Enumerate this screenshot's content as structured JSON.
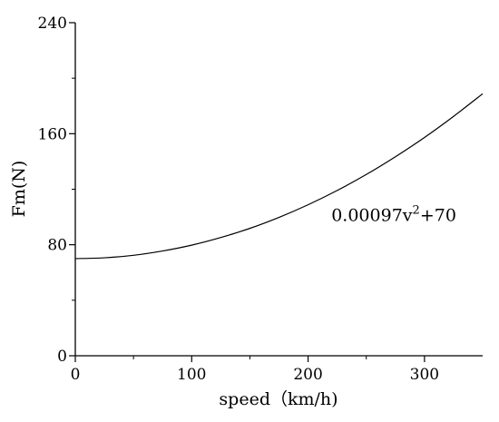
{
  "chart_data": {
    "type": "line",
    "title": "",
    "xlabel": "speed（km/h)",
    "ylabel": "Fm(N)",
    "xlim": [
      0,
      350
    ],
    "ylim": [
      0,
      240
    ],
    "x_ticks": [
      0,
      100,
      200,
      300
    ],
    "y_ticks": [
      0,
      80,
      160,
      240
    ],
    "grid": false,
    "series": [
      {
        "x": [
          0,
          25,
          50,
          75,
          100,
          125,
          150,
          175,
          200,
          225,
          250,
          275,
          300,
          325,
          350
        ],
        "y": [
          70,
          70.6,
          72.4,
          75.5,
          79.7,
          85.2,
          91.8,
          99.7,
          108.8,
          119.1,
          130.6,
          143.4,
          157.3,
          172.5,
          188.8
        ]
      }
    ],
    "annotation": {
      "base": "0.00097v",
      "sup": "2",
      "tail": "+70",
      "x": 220,
      "y": 97
    }
  }
}
